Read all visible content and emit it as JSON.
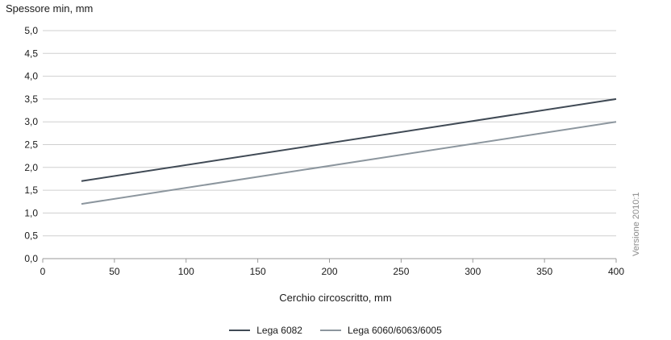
{
  "chart_data": {
    "type": "line",
    "ylabel": "Spessore min, mm",
    "xlabel": "Cerchio circoscritto, mm",
    "xlim": [
      0,
      400
    ],
    "ylim": [
      0,
      5
    ],
    "x_ticks": [
      0,
      50,
      100,
      150,
      200,
      250,
      300,
      350,
      400
    ],
    "y_ticks": [
      "0,0",
      "0,5",
      "1,0",
      "1,5",
      "2,0",
      "2,5",
      "3,0",
      "3,5",
      "4,0",
      "4,5",
      "5,0"
    ],
    "grid": true,
    "legend_position": "bottom",
    "series": [
      {
        "name": "Lega 6082",
        "color": "#404a55",
        "x": [
          27,
          400
        ],
        "y": [
          1.7,
          3.5
        ]
      },
      {
        "name": "Lega 6060/6063/6005",
        "color": "#8c969e",
        "x": [
          27,
          400
        ],
        "y": [
          1.2,
          3.0
        ]
      }
    ]
  },
  "version_note": "Versione 2010:1"
}
